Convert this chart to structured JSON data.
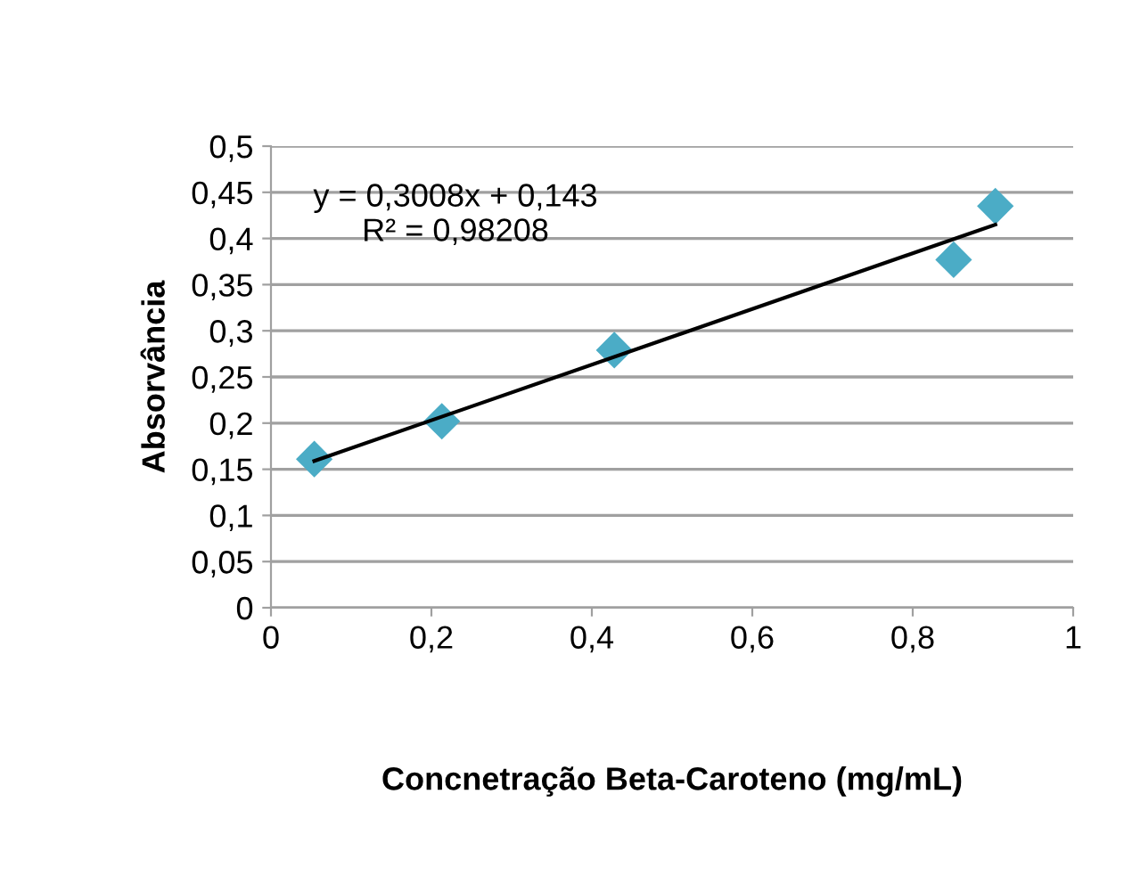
{
  "chart_data": {
    "type": "scatter",
    "xlabel": "Concnetração Beta-Caroteno (mg/mL)",
    "ylabel": "Absorvância",
    "x": [
      0.054,
      0.213,
      0.428,
      0.851,
      0.903
    ],
    "series": [
      {
        "color": "#4bacc6",
        "marker": "diamond",
        "values": [
          0.161,
          0.202,
          0.279,
          0.377,
          0.435
        ]
      },
      {
        "type": "line",
        "color": "#000000",
        "x": [
          0.054,
          0.903
        ],
        "values": [
          0.159,
          0.415
        ]
      }
    ],
    "annotations": [
      "y = 0,3008x + 0,143\nR² = 0,98208"
    ],
    "xlim": [
      0,
      1
    ],
    "xticks": [
      {
        "value": 0,
        "label": "0"
      },
      {
        "value": 0.2,
        "label": "0,2"
      },
      {
        "value": 0.4,
        "label": "0,4"
      },
      {
        "value": 0.6,
        "label": "0,6"
      },
      {
        "value": 0.8,
        "label": "0,8"
      },
      {
        "value": 1,
        "label": "1"
      }
    ],
    "ylim": [
      0,
      0.5
    ],
    "yticks": [
      {
        "value": 0,
        "label": "0"
      },
      {
        "value": 0.05,
        "label": "0,05"
      },
      {
        "value": 0.1,
        "label": "0,1"
      },
      {
        "value": 0.15,
        "label": "0,15"
      },
      {
        "value": 0.2,
        "label": "0,2"
      },
      {
        "value": 0.25,
        "label": "0,25"
      },
      {
        "value": 0.3,
        "label": "0,3"
      },
      {
        "value": 0.35,
        "label": "0,35"
      },
      {
        "value": 0.4,
        "label": "0,4"
      },
      {
        "value": 0.45,
        "label": "0,45"
      },
      {
        "value": 0.5,
        "label": "0,5"
      }
    ],
    "grid": "y",
    "legend": false
  }
}
